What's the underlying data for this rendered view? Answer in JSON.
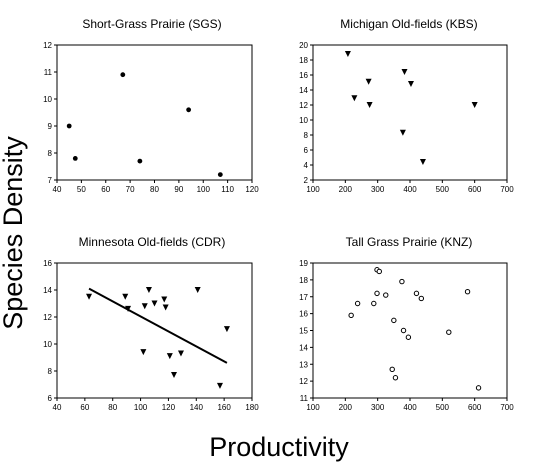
{
  "figure": {
    "ylabel": "Species Density",
    "xlabel": "Productivity"
  },
  "chart_data": [
    {
      "type": "scatter",
      "title": "Short-Grass Prairie (SGS)",
      "xlim": [
        40,
        120
      ],
      "ylim": [
        7,
        12
      ],
      "xticks": [
        40,
        50,
        60,
        70,
        80,
        90,
        100,
        110,
        120
      ],
      "yticks": [
        7,
        8,
        9,
        10,
        11,
        12
      ],
      "marker": "filled-circle",
      "points": [
        [
          45,
          9.0
        ],
        [
          47.5,
          7.8
        ],
        [
          67,
          10.9
        ],
        [
          74,
          7.7
        ],
        [
          94,
          9.6
        ],
        [
          107,
          7.2
        ]
      ]
    },
    {
      "type": "scatter",
      "title": "Michigan Old-fields (KBS)",
      "xlim": [
        100,
        700
      ],
      "ylim": [
        2,
        20
      ],
      "xticks": [
        100,
        200,
        300,
        400,
        500,
        600,
        700
      ],
      "yticks": [
        2,
        4,
        6,
        8,
        10,
        12,
        14,
        16,
        18,
        20
      ],
      "marker": "filled-triangle-down",
      "points": [
        [
          208,
          18.8
        ],
        [
          228,
          12.9
        ],
        [
          272,
          15.1
        ],
        [
          275,
          12.0
        ],
        [
          378,
          8.3
        ],
        [
          383,
          16.4
        ],
        [
          403,
          14.8
        ],
        [
          440,
          4.4
        ],
        [
          600,
          12.0
        ]
      ]
    },
    {
      "type": "scatter",
      "title": "Minnesota Old-fields (CDR)",
      "xlim": [
        40,
        180
      ],
      "ylim": [
        6,
        16
      ],
      "xticks": [
        40,
        60,
        80,
        100,
        120,
        140,
        160,
        180
      ],
      "yticks": [
        6,
        8,
        10,
        12,
        14,
        16
      ],
      "marker": "filled-triangle-down",
      "points": [
        [
          63,
          13.5
        ],
        [
          89,
          13.5
        ],
        [
          91,
          12.6
        ],
        [
          102,
          9.4
        ],
        [
          103,
          12.8
        ],
        [
          106,
          14.0
        ],
        [
          110,
          13.0
        ],
        [
          117,
          13.3
        ],
        [
          118,
          12.7
        ],
        [
          121,
          9.1
        ],
        [
          124,
          7.7
        ],
        [
          129,
          9.3
        ],
        [
          141,
          14.0
        ],
        [
          157,
          6.9
        ],
        [
          162,
          11.1
        ]
      ],
      "fit_line": [
        [
          63,
          14.1
        ],
        [
          162,
          8.6
        ]
      ]
    },
    {
      "type": "scatter",
      "title": "Tall Grass Prairie (KNZ)",
      "xlim": [
        100,
        700
      ],
      "ylim": [
        11,
        19
      ],
      "xticks": [
        100,
        200,
        300,
        400,
        500,
        600,
        700
      ],
      "yticks": [
        11,
        12,
        13,
        14,
        15,
        16,
        17,
        18,
        19
      ],
      "marker": "open-circle",
      "points": [
        [
          218,
          15.9
        ],
        [
          238,
          16.6
        ],
        [
          288,
          16.6
        ],
        [
          298,
          17.2
        ],
        [
          298,
          18.6
        ],
        [
          305,
          18.5
        ],
        [
          325,
          17.1
        ],
        [
          345,
          12.7
        ],
        [
          350,
          15.6
        ],
        [
          355,
          12.2
        ],
        [
          375,
          17.9
        ],
        [
          380,
          15.0
        ],
        [
          395,
          14.6
        ],
        [
          420,
          17.2
        ],
        [
          435,
          16.9
        ],
        [
          520,
          14.9
        ],
        [
          578,
          17.3
        ],
        [
          612,
          11.6
        ]
      ]
    }
  ]
}
